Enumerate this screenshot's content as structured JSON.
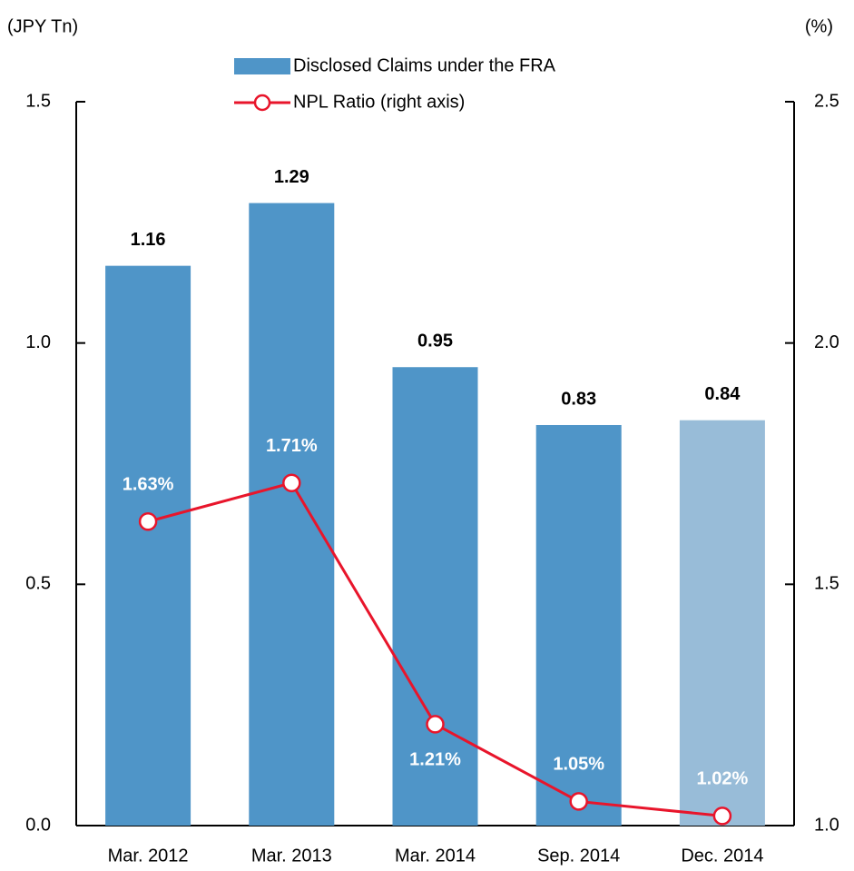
{
  "chart_data": {
    "type": "bar_line",
    "y_label": "(JPY Tn)",
    "y2_label": "(%)",
    "categories": [
      "Mar. 2012",
      "Mar. 2013",
      "Mar. 2014",
      "Sep. 2014",
      "Dec. 2014"
    ],
    "series": [
      {
        "name": "Disclosed Claims under  the FRA",
        "type": "bar",
        "color": "#4f95c8",
        "colors": [
          "#4f95c8",
          "#4f95c8",
          "#4f95c8",
          "#4f95c8",
          "#98bcd8"
        ],
        "values": [
          1.16,
          1.29,
          0.95,
          0.83,
          0.84
        ]
      },
      {
        "name": "NPL Ratio (right axis)",
        "type": "line",
        "axis": "y2",
        "color": "#e8152b",
        "values": [
          1.63,
          1.71,
          1.21,
          1.05,
          1.02
        ],
        "value_labels": [
          "1.63%",
          "1.71%",
          "1.21%",
          "1.05%",
          "1.02%"
        ]
      }
    ],
    "ylim": [
      0,
      1.5
    ],
    "yticks": [
      {
        "value": 0,
        "label": "0.0"
      },
      0.5,
      {
        "value": 1,
        "label": "1.0"
      },
      1.5
    ],
    "y2lim": [
      1,
      2.5
    ],
    "y2ticks": [
      {
        "value": 1,
        "label": "1.0"
      },
      1.5,
      {
        "value": 2,
        "label": "2.0"
      },
      2.5
    ],
    "grid": false
  }
}
